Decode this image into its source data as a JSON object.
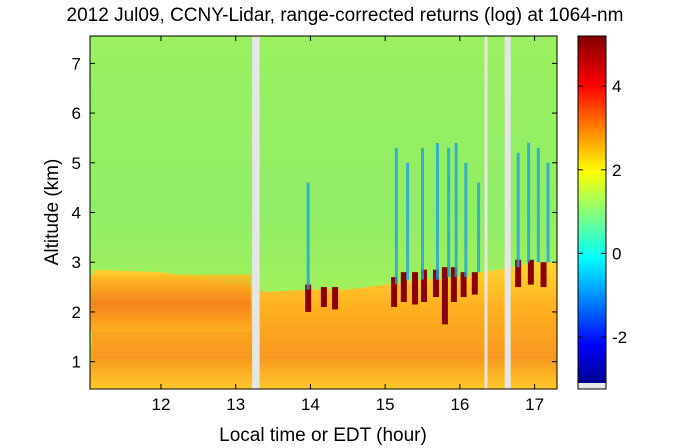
{
  "chart_data": {
    "type": "heatmap",
    "title": "2012 Jul09, CCNY-Lidar, range-corrected returns (log) at 1064-nm",
    "xlabel": "Local time or EDT (hour)",
    "ylabel": "Altitude (km)",
    "xlim": [
      11.05,
      17.3
    ],
    "ylim": [
      0.45,
      7.55
    ],
    "xticks": [
      "12",
      "13",
      "14",
      "15",
      "16",
      "17"
    ],
    "yticks": [
      "1",
      "2",
      "3",
      "4",
      "5",
      "6",
      "7"
    ],
    "colorbar": {
      "range": [
        -3.1,
        5.2
      ],
      "ticks": [
        "4",
        "2",
        "0",
        "-2"
      ],
      "colormap": "jet"
    },
    "data_gaps_hour": [
      [
        13.22,
        13.32
      ],
      [
        16.33,
        16.37
      ],
      [
        16.6,
        16.68
      ]
    ],
    "boundary_layer_top_km": [
      {
        "hour": 11.1,
        "km": 2.85
      },
      {
        "hour": 12.0,
        "km": 2.8
      },
      {
        "hour": 12.6,
        "km": 2.65
      },
      {
        "hour": 13.2,
        "km": 2.5
      },
      {
        "hour": 13.4,
        "km": 2.4
      },
      {
        "hour": 14.0,
        "km": 2.45
      },
      {
        "hour": 14.5,
        "km": 2.45
      },
      {
        "hour": 15.0,
        "km": 2.55
      },
      {
        "hour": 15.5,
        "km": 2.65
      },
      {
        "hour": 16.0,
        "km": 2.7
      },
      {
        "hour": 16.3,
        "km": 2.8
      },
      {
        "hour": 16.7,
        "km": 2.9
      },
      {
        "hour": 17.0,
        "km": 3.0
      },
      {
        "hour": 17.3,
        "km": 3.0
      }
    ],
    "aerosol_layer_km": {
      "hour_range": [
        11.05,
        13.2
      ],
      "bottom": 1.6,
      "top": 2.75
    },
    "cloud_events": [
      {
        "hour": 13.97,
        "base_km": 2.0,
        "top_km": 2.55
      },
      {
        "hour": 14.18,
        "base_km": 2.1,
        "top_km": 2.5
      },
      {
        "hour": 14.33,
        "base_km": 2.05,
        "top_km": 2.5
      },
      {
        "hour": 15.12,
        "base_km": 2.1,
        "top_km": 2.7
      },
      {
        "hour": 15.25,
        "base_km": 2.2,
        "top_km": 2.8
      },
      {
        "hour": 15.4,
        "base_km": 2.15,
        "top_km": 2.8
      },
      {
        "hour": 15.52,
        "base_km": 2.2,
        "top_km": 2.85
      },
      {
        "hour": 15.68,
        "base_km": 2.3,
        "top_km": 2.85
      },
      {
        "hour": 15.8,
        "base_km": 1.75,
        "top_km": 2.9
      },
      {
        "hour": 15.92,
        "base_km": 2.2,
        "top_km": 2.9
      },
      {
        "hour": 16.05,
        "base_km": 2.3,
        "top_km": 2.8
      },
      {
        "hour": 16.2,
        "base_km": 2.35,
        "top_km": 2.8
      },
      {
        "hour": 16.78,
        "base_km": 2.5,
        "top_km": 3.05
      },
      {
        "hour": 16.95,
        "base_km": 2.55,
        "top_km": 3.05
      },
      {
        "hour": 17.12,
        "base_km": 2.5,
        "top_km": 3.0
      }
    ],
    "precipitation_streaks": [
      {
        "hour": 13.97,
        "top_km": 4.6
      },
      {
        "hour": 15.15,
        "top_km": 5.3
      },
      {
        "hour": 15.3,
        "top_km": 5.0
      },
      {
        "hour": 15.5,
        "top_km": 5.3
      },
      {
        "hour": 15.7,
        "top_km": 5.4
      },
      {
        "hour": 15.85,
        "top_km": 5.3
      },
      {
        "hour": 15.95,
        "top_km": 5.4
      },
      {
        "hour": 16.08,
        "top_km": 5.0
      },
      {
        "hour": 16.25,
        "top_km": 4.6
      },
      {
        "hour": 16.78,
        "top_km": 5.2
      },
      {
        "hour": 16.92,
        "top_km": 5.4
      },
      {
        "hour": 17.05,
        "top_km": 5.3
      },
      {
        "hour": 17.18,
        "top_km": 5.0
      }
    ]
  }
}
